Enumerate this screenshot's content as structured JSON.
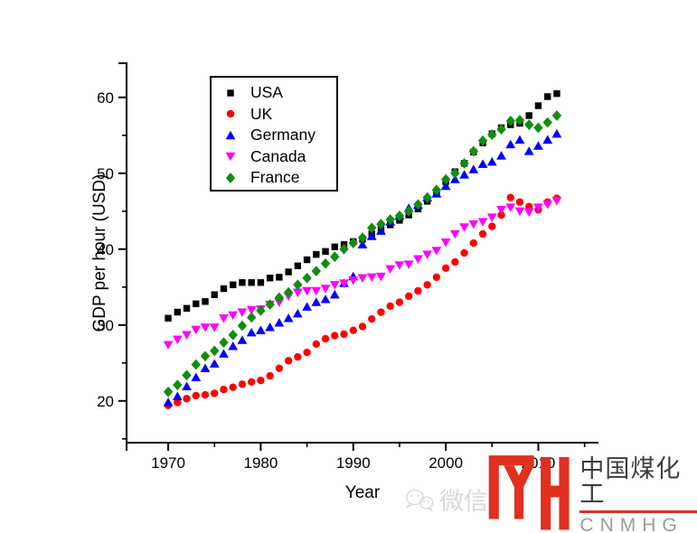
{
  "chart_data": {
    "type": "scatter",
    "title": "",
    "xlabel": "Year",
    "ylabel": "GDP per hour (USD)",
    "xlim": [
      1965.5,
      2016.5
    ],
    "ylim": [
      14.5,
      64.5
    ],
    "x_ticks": [
      1970,
      1980,
      1990,
      2000,
      2010
    ],
    "x_minor_ticks": [
      1975,
      1985,
      1995,
      2005,
      2015
    ],
    "y_ticks": [
      20,
      30,
      40,
      50,
      60
    ],
    "y_minor_ticks": [
      15,
      25,
      35,
      45,
      55
    ],
    "grid": false,
    "legend_position": "top-left-inside",
    "x": [
      1970,
      1971,
      1972,
      1973,
      1974,
      1975,
      1976,
      1977,
      1978,
      1979,
      1980,
      1981,
      1982,
      1983,
      1984,
      1985,
      1986,
      1987,
      1988,
      1989,
      1990,
      1991,
      1992,
      1993,
      1994,
      1995,
      1996,
      1997,
      1998,
      1999,
      2000,
      2001,
      2002,
      2003,
      2004,
      2005,
      2006,
      2007,
      2008,
      2009,
      2010,
      2011,
      2012
    ],
    "series": [
      {
        "name": "USA",
        "marker": "square",
        "color": "#000000",
        "values": [
          30.9,
          31.7,
          32.2,
          32.8,
          33.1,
          34.0,
          34.8,
          35.3,
          35.6,
          35.6,
          35.6,
          36.2,
          36.3,
          37.0,
          37.8,
          38.6,
          39.3,
          39.7,
          40.3,
          40.6,
          41.0,
          41.3,
          42.0,
          42.6,
          43.2,
          43.8,
          44.5,
          45.3,
          46.3,
          47.5,
          48.9,
          50.2,
          51.3,
          52.8,
          54.0,
          55.2,
          56.0,
          56.4,
          56.6,
          57.6,
          58.9,
          60.1,
          60.5
        ]
      },
      {
        "name": "UK",
        "marker": "circle",
        "color": "#ff0000",
        "values": [
          19.4,
          19.8,
          20.3,
          20.7,
          20.8,
          21.0,
          21.5,
          21.8,
          22.2,
          22.5,
          22.7,
          23.3,
          24.3,
          25.3,
          25.8,
          26.4,
          27.5,
          28.2,
          28.6,
          28.8,
          29.3,
          29.8,
          30.8,
          31.7,
          32.5,
          33.0,
          33.8,
          34.5,
          35.3,
          36.3,
          37.5,
          38.3,
          39.5,
          40.8,
          42.0,
          43.0,
          44.5,
          46.8,
          46.2,
          45.6,
          45.2,
          46.2,
          46.7
        ]
      },
      {
        "name": "Germany",
        "marker": "triangle-up",
        "color": "#0000ff",
        "values": [
          19.8,
          20.6,
          21.9,
          23.1,
          24.3,
          24.9,
          26.2,
          27.2,
          28.0,
          29.0,
          29.3,
          29.7,
          30.3,
          30.9,
          31.5,
          32.4,
          33.0,
          33.4,
          34.0,
          35.5,
          36.4,
          40.6,
          41.7,
          42.4,
          43.6,
          44.4,
          45.4,
          45.8,
          46.8,
          47.3,
          48.3,
          49.2,
          49.8,
          50.5,
          51.2,
          51.5,
          52.3,
          53.8,
          54.4,
          52.9,
          53.6,
          54.4,
          55.2
        ]
      },
      {
        "name": "Canada",
        "marker": "triangle-down",
        "color": "#ff00ff",
        "values": [
          27.4,
          28.1,
          28.7,
          29.4,
          29.7,
          29.7,
          30.9,
          31.3,
          31.7,
          32.0,
          32.1,
          32.7,
          33.0,
          33.8,
          34.3,
          34.5,
          34.5,
          34.8,
          35.3,
          35.5,
          35.9,
          36.2,
          36.3,
          36.4,
          37.4,
          37.9,
          38.0,
          38.7,
          39.3,
          39.8,
          40.9,
          42.0,
          42.9,
          43.3,
          43.6,
          44.2,
          45.2,
          45.5,
          45.0,
          44.9,
          45.5,
          45.9,
          46.4
        ]
      },
      {
        "name": "France",
        "marker": "diamond",
        "color": "#0f8e0f",
        "values": [
          21.2,
          22.1,
          23.4,
          24.8,
          25.9,
          26.6,
          27.7,
          28.7,
          29.9,
          31.0,
          31.9,
          32.7,
          33.6,
          34.3,
          35.3,
          36.2,
          37.1,
          38.1,
          39.0,
          40.0,
          40.8,
          41.5,
          42.8,
          43.3,
          43.9,
          44.4,
          45.0,
          45.9,
          46.8,
          47.8,
          49.2,
          50.0,
          51.3,
          52.9,
          54.3,
          55.1,
          55.8,
          56.9,
          57.0,
          56.4,
          56.0,
          56.7,
          57.6
        ]
      }
    ]
  },
  "watermark": {
    "text": "微信",
    "color": "#d9d9d9"
  },
  "logo": {
    "primary_text": "中国煤化工",
    "secondary_text": "CNMHG",
    "red": "#e0301e",
    "text_color": "#3d3d3d",
    "secondary_color": "#9b9b9b"
  }
}
